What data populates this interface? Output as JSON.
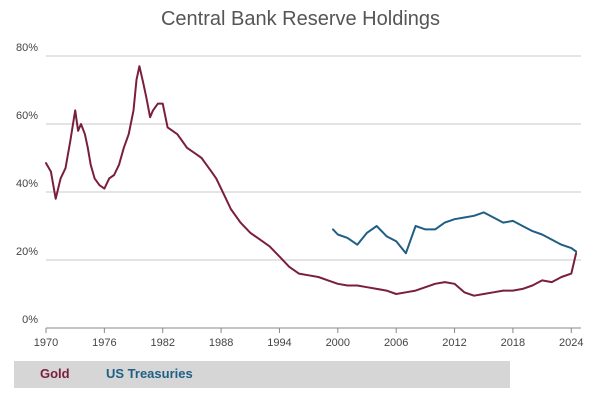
{
  "chart_data": {
    "type": "line",
    "title": "Central Bank Reserve Holdings",
    "xlabel": "",
    "ylabel": "",
    "xlim": [
      1970,
      2025
    ],
    "ylim": [
      0,
      80
    ],
    "x_ticks": [
      1970,
      1976,
      1982,
      1988,
      1994,
      2000,
      2006,
      2012,
      2018,
      2024
    ],
    "x_tick_labels": [
      "1970",
      "1976",
      "1982",
      "1988",
      "1994",
      "2000",
      "2006",
      "2012",
      "2018",
      "2024"
    ],
    "y_ticks": [
      0,
      20,
      40,
      60,
      80
    ],
    "y_tick_labels": [
      "0%",
      "20%",
      "40%",
      "60%",
      "80%"
    ],
    "grid": "horizontal",
    "legend_position": "bottom",
    "series": [
      {
        "name": "Gold",
        "color": "#7a1e3f",
        "x": [
          1970,
          1970.5,
          1971,
          1971.5,
          1972,
          1972.5,
          1973,
          1973.3,
          1973.6,
          1974,
          1974.3,
          1974.6,
          1975,
          1975.5,
          1976,
          1976.5,
          1977,
          1977.5,
          1978,
          1978.5,
          1979,
          1979.3,
          1979.6,
          1980,
          1980.3,
          1980.7,
          1981,
          1981.5,
          1982,
          1982.5,
          1983,
          1983.5,
          1984,
          1984.5,
          1985,
          1985.5,
          1986,
          1986.5,
          1987,
          1987.5,
          1988,
          1988.5,
          1989,
          1990,
          1991,
          1992,
          1993,
          1994,
          1995,
          1996,
          1997,
          1998,
          1999,
          2000,
          2001,
          2002,
          2003,
          2004,
          2005,
          2006,
          2007,
          2008,
          2009,
          2010,
          2011,
          2012,
          2013,
          2014,
          2015,
          2016,
          2017,
          2018,
          2019,
          2020,
          2021,
          2022,
          2023,
          2024,
          2024.5
        ],
        "values": [
          48.5,
          46,
          38,
          44,
          47,
          55,
          64,
          58,
          60,
          57,
          53,
          48,
          44,
          42,
          41,
          44,
          45,
          48,
          53,
          57,
          64,
          73,
          77,
          72,
          68,
          62,
          64,
          66,
          66,
          59,
          58,
          57,
          55,
          53,
          52,
          51,
          50,
          48,
          46,
          44,
          41,
          38,
          35,
          31,
          28,
          26,
          24,
          21,
          18,
          16,
          15.5,
          15,
          14,
          13,
          12.5,
          12.5,
          12,
          11.5,
          11,
          10,
          10.5,
          11,
          12,
          13,
          13.5,
          13,
          10.5,
          9.5,
          10,
          10.5,
          11,
          11,
          11.5,
          12.5,
          14,
          13.5,
          15,
          16,
          22
        ]
      },
      {
        "name": "US Treasuries",
        "color": "#1f5f85",
        "x": [
          1999.5,
          2000,
          2001,
          2002,
          2003,
          2004,
          2005,
          2006,
          2007,
          2008,
          2009,
          2010,
          2011,
          2012,
          2013,
          2014,
          2015,
          2016,
          2017,
          2018,
          2019,
          2020,
          2021,
          2022,
          2023,
          2024,
          2024.5
        ],
        "values": [
          29,
          27.5,
          26.5,
          24.5,
          28,
          30,
          27,
          25.5,
          22,
          30,
          29,
          29,
          31,
          32,
          32.5,
          33,
          34,
          32.5,
          31,
          31.5,
          30,
          28.5,
          27.5,
          26,
          24.5,
          23.5,
          22.5
        ]
      }
    ]
  }
}
